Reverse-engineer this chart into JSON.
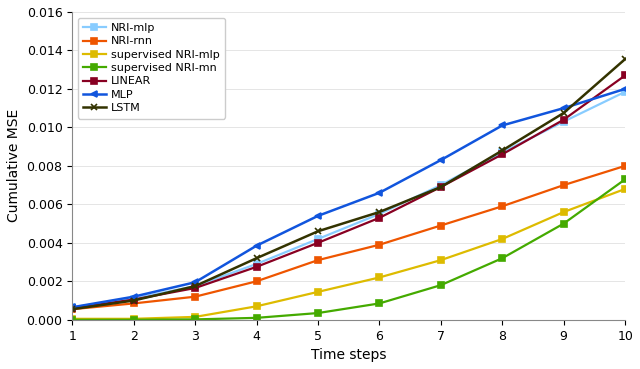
{
  "x": [
    1,
    2,
    3,
    4,
    5,
    6,
    7,
    8,
    9,
    10
  ],
  "series_order": [
    "NRI-mlp",
    "NRI-rnn",
    "supervised NRI-mlp",
    "supervised NRI-mn",
    "LINEAR",
    "MLP",
    "LSTM"
  ],
  "series": {
    "NRI-mlp": {
      "values": [
        0.00065,
        0.0011,
        0.00175,
        0.0029,
        0.0042,
        0.0055,
        0.007,
        0.0087,
        0.0103,
        0.01185
      ],
      "color": "#88ccff",
      "marker": "s",
      "markersize": 4,
      "linewidth": 1.6,
      "markerfacecolor": "#88ccff"
    },
    "NRI-rnn": {
      "values": [
        0.00055,
        0.00085,
        0.0012,
        0.002,
        0.0031,
        0.0039,
        0.0049,
        0.0059,
        0.007,
        0.008
      ],
      "color": "#ee5500",
      "marker": "s",
      "markersize": 4,
      "linewidth": 1.6,
      "markerfacecolor": "#ee5500"
    },
    "supervised NRI-mlp": {
      "values": [
        5e-05,
        5e-05,
        0.00015,
        0.0007,
        0.00145,
        0.0022,
        0.0031,
        0.0042,
        0.0056,
        0.0068
      ],
      "color": "#ddbb00",
      "marker": "s",
      "markersize": 4,
      "linewidth": 1.6,
      "markerfacecolor": "#ddbb00"
    },
    "supervised NRI-mn": {
      "values": [
        0.0,
        0.0,
        2e-05,
        0.0001,
        0.00035,
        0.00085,
        0.0018,
        0.0032,
        0.005,
        0.0073
      ],
      "color": "#44aa00",
      "marker": "s",
      "markersize": 4,
      "linewidth": 1.6,
      "markerfacecolor": "#44aa00"
    },
    "LINEAR": {
      "values": [
        0.0006,
        0.00105,
        0.00165,
        0.00275,
        0.004,
        0.0053,
        0.0069,
        0.0086,
        0.0104,
        0.0127
      ],
      "color": "#880022",
      "marker": "s",
      "markersize": 4,
      "linewidth": 1.6,
      "markerfacecolor": "#880022"
    },
    "MLP": {
      "values": [
        0.00065,
        0.0012,
        0.00195,
        0.00385,
        0.0054,
        0.0066,
        0.0083,
        0.0101,
        0.011,
        0.012
      ],
      "color": "#1155dd",
      "marker": "<",
      "markersize": 5,
      "linewidth": 1.8,
      "markerfacecolor": "#1155dd"
    },
    "LSTM": {
      "values": [
        0.00055,
        0.001,
        0.00175,
        0.0032,
        0.0046,
        0.0056,
        0.0069,
        0.0088,
        0.01075,
        0.01355
      ],
      "color": "#333300",
      "marker": "x",
      "markersize": 5,
      "linewidth": 1.8,
      "markerfacecolor": "none"
    }
  },
  "xlabel": "Time steps",
  "ylabel": "Cumulative MSE",
  "xlim": [
    1,
    10
  ],
  "ylim": [
    0,
    0.016
  ],
  "yticks": [
    0.0,
    0.002,
    0.004,
    0.006,
    0.008,
    0.01,
    0.012,
    0.014,
    0.016
  ],
  "xticks": [
    1,
    2,
    3,
    4,
    5,
    6,
    7,
    8,
    9,
    10
  ],
  "legend_loc": "upper left",
  "legend_fontsize": 8,
  "axis_fontsize": 10,
  "tick_fontsize": 9,
  "bg_color": "#ffffff"
}
